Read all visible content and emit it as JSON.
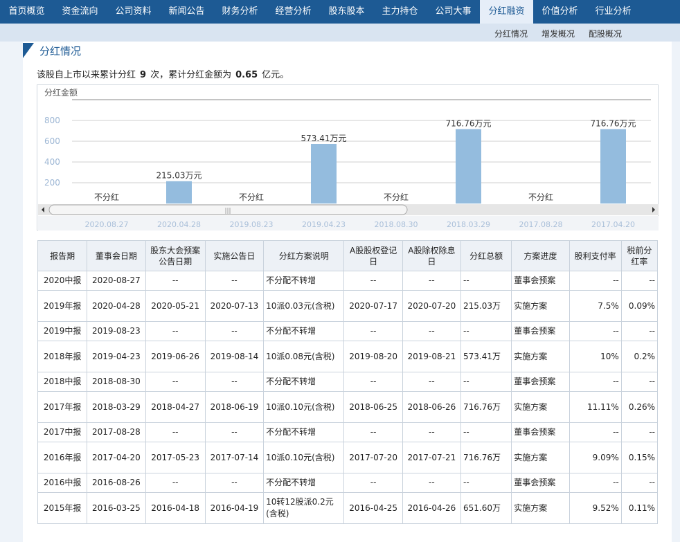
{
  "nav": {
    "items": [
      "首页概览",
      "资金流向",
      "公司资料",
      "新闻公告",
      "财务分析",
      "经营分析",
      "股东股本",
      "主力持仓",
      "公司大事",
      "分红融资",
      "价值分析",
      "行业分析"
    ],
    "active_index": 9,
    "sub_items": [
      "分红情况",
      "增发概况",
      "配股概况"
    ]
  },
  "section": {
    "title": "分红情况",
    "summary_prefix": "该股自上市以来累计分红",
    "summary_count": "9",
    "summary_mid": "次，累计分红金额为",
    "summary_amount": "0.65",
    "summary_suffix": "亿元。"
  },
  "chart_data": {
    "type": "bar",
    "title": "分红金额",
    "categories": [
      "2020.08.27",
      "2020.04.28",
      "2019.08.23",
      "2019.04.23",
      "2018.08.30",
      "2018.03.29",
      "2017.08.28",
      "2017.04.20"
    ],
    "values": [
      0,
      215.03,
      0,
      573.41,
      0,
      716.76,
      0,
      716.76
    ],
    "labels": [
      "不分红",
      "215.03万元",
      "不分红",
      "573.41万元",
      "不分红",
      "716.76万元",
      "不分红",
      "716.76万元"
    ],
    "yticks": [
      200,
      400,
      600,
      800
    ],
    "ylim": [
      0,
      800
    ],
    "grid": true,
    "bar_color": "#94bcde"
  },
  "table": {
    "headers": [
      "报告期",
      "董事会日期",
      "股东大会预案公告日期",
      "实施公告日",
      "分红方案说明",
      "A股股权登记日",
      "A股除权除息日",
      "分红总额",
      "方案进度",
      "股利支付率",
      "税前分红率"
    ],
    "rows": [
      [
        "2020中报",
        "2020-08-27",
        "--",
        "--",
        "不分配不转增",
        "--",
        "--",
        "--",
        "董事会预案",
        "--",
        "--"
      ],
      [
        "2019年报",
        "2020-04-28",
        "2020-05-21",
        "2020-07-13",
        "10派0.03元(含税)",
        "2020-07-17",
        "2020-07-20",
        "215.03万",
        "实施方案",
        "7.5%",
        "0.09%"
      ],
      [
        "2019中报",
        "2019-08-23",
        "--",
        "--",
        "不分配不转增",
        "--",
        "--",
        "--",
        "董事会预案",
        "--",
        "--"
      ],
      [
        "2018年报",
        "2019-04-23",
        "2019-06-26",
        "2019-08-14",
        "10派0.08元(含税)",
        "2019-08-20",
        "2019-08-21",
        "573.41万",
        "实施方案",
        "10%",
        "0.2%"
      ],
      [
        "2018中报",
        "2018-08-30",
        "--",
        "--",
        "不分配不转增",
        "--",
        "--",
        "--",
        "董事会预案",
        "--",
        "--"
      ],
      [
        "2017年报",
        "2018-03-29",
        "2018-04-27",
        "2018-06-19",
        "10派0.10元(含税)",
        "2018-06-25",
        "2018-06-26",
        "716.76万",
        "实施方案",
        "11.11%",
        "0.26%"
      ],
      [
        "2017中报",
        "2017-08-28",
        "--",
        "--",
        "不分配不转增",
        "--",
        "--",
        "--",
        "董事会预案",
        "--",
        "--"
      ],
      [
        "2016年报",
        "2017-04-20",
        "2017-05-23",
        "2017-07-14",
        "10派0.10元(含税)",
        "2017-07-20",
        "2017-07-21",
        "716.76万",
        "实施方案",
        "9.09%",
        "0.15%"
      ],
      [
        "2016中报",
        "2016-08-26",
        "--",
        "--",
        "不分配不转增",
        "--",
        "--",
        "--",
        "董事会预案",
        "--",
        "--"
      ],
      [
        "2015年报",
        "2016-03-25",
        "2016-04-18",
        "2016-04-19",
        "10转12股派0.2元(含税)",
        "2016-04-25",
        "2016-04-26",
        "651.60万",
        "实施方案",
        "9.52%",
        "0.11%"
      ]
    ]
  }
}
